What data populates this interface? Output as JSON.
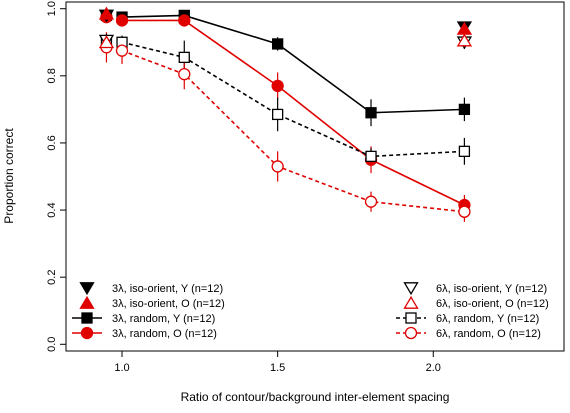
{
  "chart_data": {
    "type": "line",
    "xlabel": "Ratio of contour/background inter-element spacing",
    "ylabel": "Proportion correct",
    "xlim": [
      0.82,
      2.42
    ],
    "ylim": [
      -0.02,
      1.02
    ],
    "x_ticks": [
      1.0,
      1.5,
      2.0
    ],
    "x_tick_labels": [
      "1.0",
      "1.5",
      "2.0"
    ],
    "y_ticks": [
      0.0,
      0.2,
      0.4,
      0.6,
      0.8,
      1.0
    ],
    "y_tick_labels": [
      "0.0",
      "0.2",
      "0.4",
      "0.6",
      "0.8",
      "1.0"
    ],
    "grid": false,
    "legend_placement": "bottom-left and bottom-right",
    "series": [
      {
        "name": "3λ, random, Y (n=12)",
        "color": "#000000",
        "marker": "square-filled",
        "line": "solid",
        "x": [
          0.95,
          1.0,
          1.2,
          1.5,
          1.8,
          2.1
        ],
        "y": [
          0.98,
          0.975,
          0.98,
          0.895,
          0.69,
          0.7
        ],
        "err": [
          0.0,
          0.012,
          0.012,
          0.02,
          0.04,
          0.035
        ]
      },
      {
        "name": "3λ, random, O (n=12)",
        "color": "#e00000",
        "marker": "circle-filled",
        "line": "solid",
        "x": [
          0.95,
          1.0,
          1.2,
          1.5,
          1.8,
          2.1
        ],
        "y": [
          0.975,
          0.965,
          0.965,
          0.77,
          0.55,
          0.415
        ],
        "err": [
          0.0,
          0.012,
          0.012,
          0.04,
          0.04,
          0.03
        ]
      },
      {
        "name": "6λ, random, Y (n=12)",
        "color": "#000000",
        "marker": "square-open",
        "line": "dashed",
        "x": [
          0.95,
          1.0,
          1.2,
          1.5,
          1.8,
          2.1
        ],
        "y": [
          0.9,
          0.9,
          0.855,
          0.685,
          0.56,
          0.575
        ],
        "err": [
          0.02,
          0.02,
          0.05,
          0.05,
          0.025,
          0.04
        ]
      },
      {
        "name": "6λ, random, O (n=12)",
        "color": "#e00000",
        "marker": "circle-open",
        "line": "dashed",
        "x": [
          0.95,
          1.0,
          1.2,
          1.5,
          1.8,
          2.1
        ],
        "y": [
          0.885,
          0.875,
          0.805,
          0.53,
          0.425,
          0.395
        ],
        "err": [
          0.045,
          0.04,
          0.045,
          0.045,
          0.03,
          0.03
        ]
      },
      {
        "name": "3λ, iso-orient, Y (n=12)",
        "color": "#000000",
        "marker": "triangle-down-filled",
        "line": "none",
        "x": [
          0.95,
          2.1
        ],
        "y": [
          0.98,
          0.945
        ],
        "err": [
          0.0,
          0.0
        ]
      },
      {
        "name": "3λ, iso-orient, O (n=12)",
        "color": "#e00000",
        "marker": "triangle-up-filled",
        "line": "none",
        "x": [
          0.95,
          2.1
        ],
        "y": [
          0.985,
          0.94
        ],
        "err": [
          0.0,
          0.0
        ]
      },
      {
        "name": "6λ, iso-orient, Y (n=12)",
        "color": "#000000",
        "marker": "triangle-down-open",
        "line": "none",
        "x": [
          0.95,
          2.1
        ],
        "y": [
          0.905,
          0.9
        ],
        "err": [
          0.02,
          0.02
        ]
      },
      {
        "name": "6λ, iso-orient, O (n=12)",
        "color": "#e00000",
        "marker": "triangle-up-open",
        "line": "none",
        "x": [
          0.95,
          2.1
        ],
        "y": [
          0.9,
          0.905
        ],
        "err": [
          0.02,
          0.02
        ]
      }
    ],
    "legend_left": [
      "3λ, iso-orient, Y (n=12)",
      "3λ, iso-orient, O (n=12)",
      "3λ, random, Y (n=12)",
      "3λ, random, O (n=12)"
    ],
    "legend_right": [
      "6λ, iso-orient, Y (n=12)",
      "6λ, iso-orient, O (n=12)",
      "6λ, random, Y (n=12)",
      "6λ, random, O (n=12)"
    ]
  }
}
